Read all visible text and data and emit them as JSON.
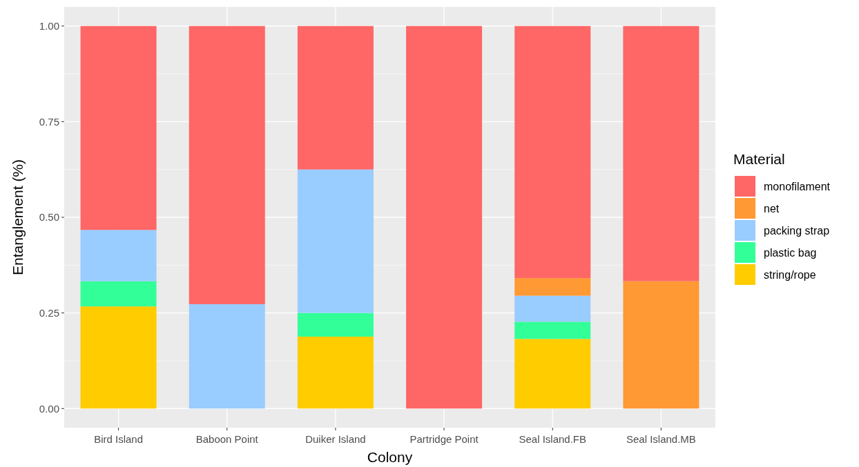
{
  "chart_data": {
    "type": "bar",
    "stacked": true,
    "xlabel": "Colony",
    "ylabel": "Entanglement (%)",
    "legend_title": "Material",
    "legend": "right",
    "grid": true,
    "categories": [
      "Bird Island",
      "Baboon Point",
      "Duiker Island",
      "Partridge Point",
      "Seal Island.FB",
      "Seal Island.MB"
    ],
    "ylim": [
      -0.05,
      1.05
    ],
    "yticks": [
      {
        "value": 0,
        "label": "0.00"
      },
      {
        "value": 0.25,
        "label": "0.25"
      },
      {
        "value": 0.5,
        "label": "0.50"
      },
      {
        "value": 0.75,
        "label": "0.75"
      },
      {
        "value": 1,
        "label": "1.00"
      }
    ],
    "series": [
      {
        "name": "string/rope",
        "color": "#ffcc00",
        "values": [
          0.267,
          0,
          0.188,
          0,
          0.182,
          0
        ]
      },
      {
        "name": "plastic bag",
        "color": "#33ff99",
        "values": [
          0.066,
          0,
          0.062,
          0,
          0.045,
          0
        ]
      },
      {
        "name": "packing strap",
        "color": "#99ccff",
        "values": [
          0.134,
          0.273,
          0.375,
          0,
          0.068,
          0
        ]
      },
      {
        "name": "net",
        "color": "#ff9933",
        "values": [
          0,
          0,
          0,
          0,
          0.046,
          0.333
        ]
      },
      {
        "name": "monofilament",
        "color": "#ff6666",
        "values": [
          0.533,
          0.727,
          0.375,
          1,
          0.659,
          0.667
        ]
      }
    ]
  }
}
